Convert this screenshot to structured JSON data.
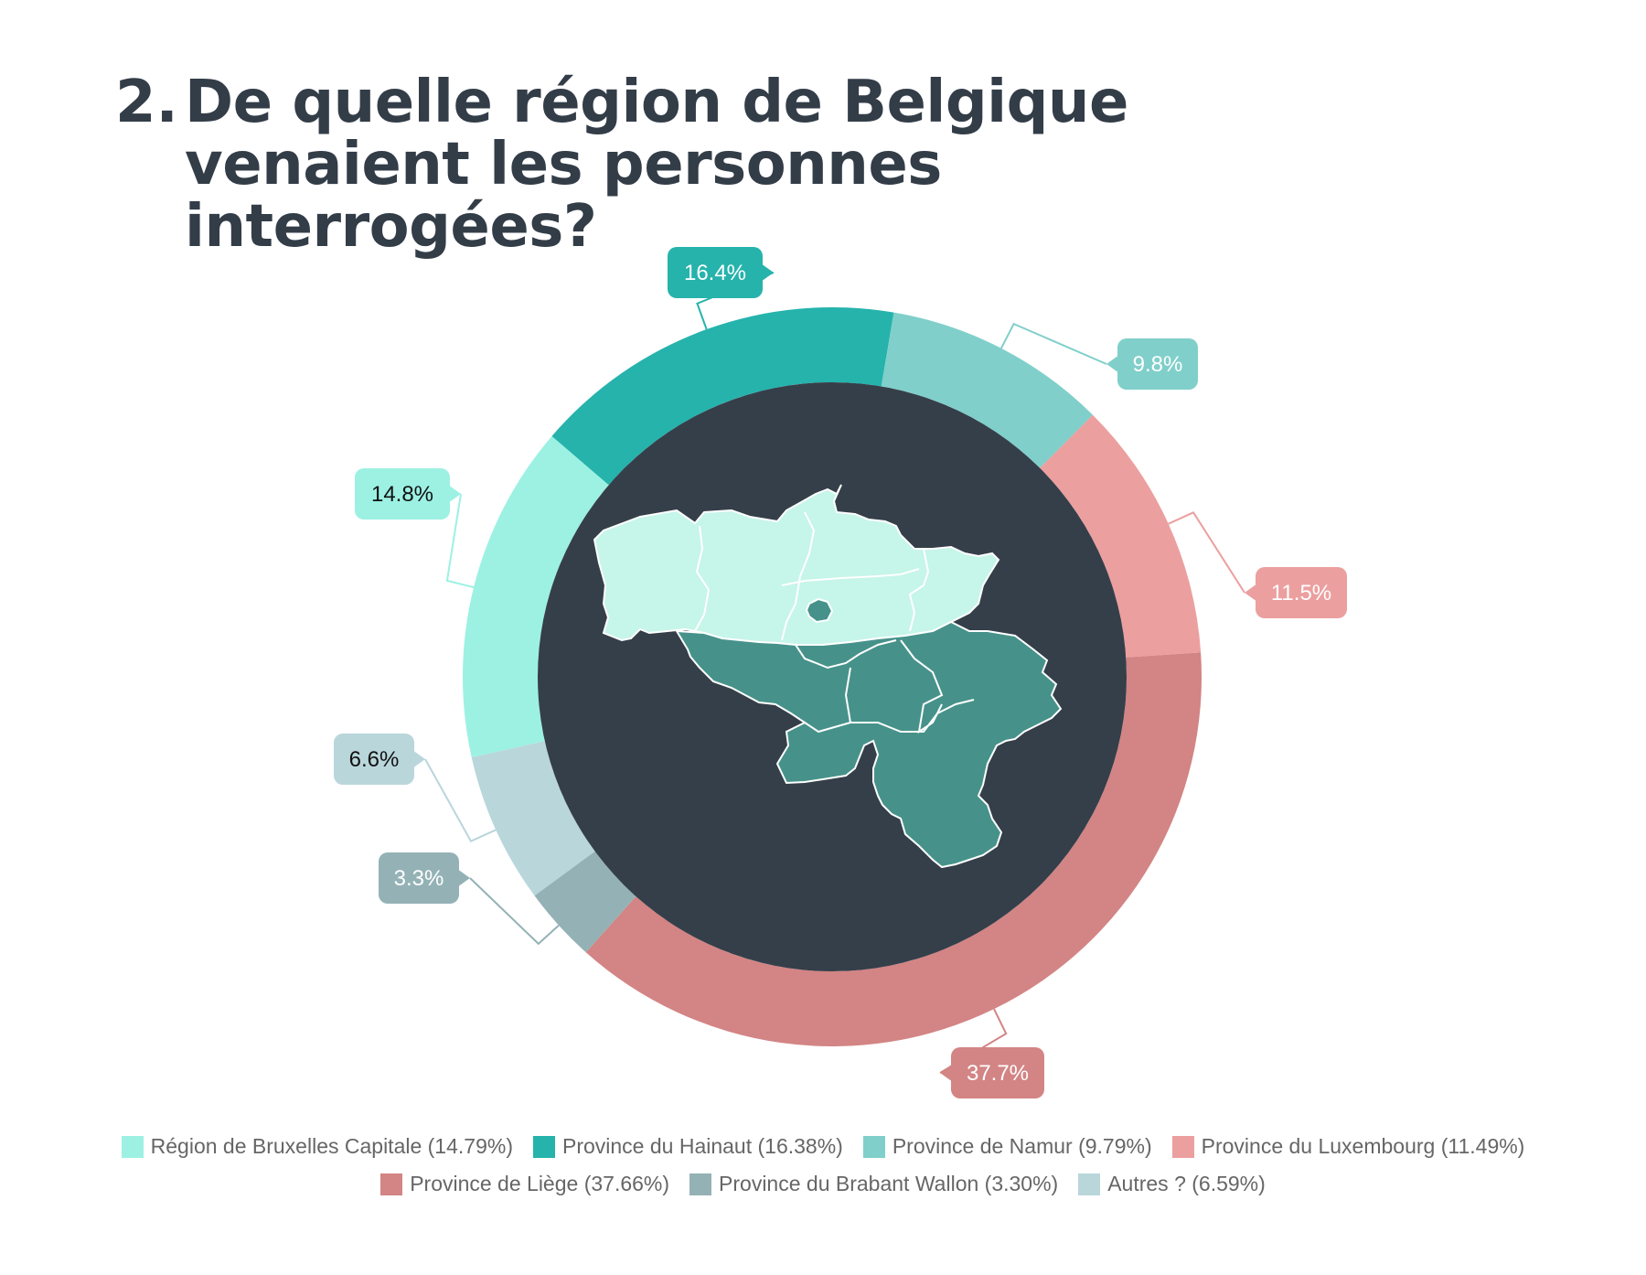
{
  "title": {
    "number": "2.",
    "text": "De quelle région de Belgique venaient les personnes interrogées?"
  },
  "chart_data": {
    "type": "pie",
    "variant": "donut",
    "series": [
      {
        "name": "Région de Bruxelles Capitale",
        "value": 14.79,
        "label": "14.8%",
        "legend": "Région de Bruxelles Capitale (14.79%)",
        "color": "#9cf1e3",
        "label_text_color": "#111111"
      },
      {
        "name": "Province du Hainaut",
        "value": 16.38,
        "label": "16.4%",
        "legend": "Province du Hainaut (16.38%)",
        "color": "#25b3ac",
        "label_text_color": "#ffffff"
      },
      {
        "name": "Province de Namur",
        "value": 9.79,
        "label": "9.8%",
        "legend": "Province de Namur (9.79%)",
        "color": "#80cfca",
        "label_text_color": "#ffffff"
      },
      {
        "name": "Province du Luxembourg",
        "value": 11.49,
        "label": "11.5%",
        "legend": "Province du Luxembourg (11.49%)",
        "color": "#ec9f9f",
        "label_text_color": "#ffffff"
      },
      {
        "name": "Province de Liège",
        "value": 37.66,
        "label": "37.7%",
        "legend": "Province de Liège (37.66%)",
        "color": "#d38484",
        "label_text_color": "#ffffff"
      },
      {
        "name": "Province du Brabant Wallon",
        "value": 3.3,
        "label": "3.3%",
        "legend": "Province du Brabant Wallon (3.30%)",
        "color": "#94b2b6",
        "label_text_color": "#ffffff"
      },
      {
        "name": "Autres ?",
        "value": 6.59,
        "label": "6.6%",
        "legend": "Autres ? (6.59%)",
        "color": "#b9d6db",
        "label_text_color": "#111111"
      }
    ],
    "center_color": "#353f4a",
    "map_colors": {
      "north": "#c6f5e9",
      "south": "#46928a",
      "border": "#ffffff"
    },
    "legend_position": "bottom"
  }
}
